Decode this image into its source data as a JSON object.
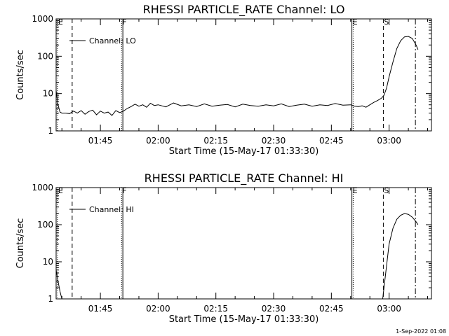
{
  "colors": {
    "background": "#ffffff",
    "foreground": "#000000"
  },
  "timestamp": "1-Sep-2022 01:08",
  "chart_data": [
    {
      "type": "line",
      "title": "RHESSI PARTICLE_RATE Channel: LO",
      "xlabel": "Start Time (15-May-17 01:33:30)",
      "ylabel": "Counts/sec",
      "y_scale": "log",
      "ylim": [
        1,
        1000
      ],
      "y_ticks": [
        "1",
        "10",
        "100",
        "1000"
      ],
      "xlim": [
        "01:33:30",
        "03:11:00"
      ],
      "x_ticks": [
        "01:45",
        "02:00",
        "02:15",
        "02:30",
        "02:45",
        "03:00"
      ],
      "grid": false,
      "legend": {
        "position": "top-left",
        "label": "Channel: LO"
      },
      "markers": [
        {
          "label": "E",
          "time": "01:33:50",
          "style": "dotted"
        },
        {
          "label": "",
          "time": "01:37:40",
          "style": "dashed"
        },
        {
          "label": "F",
          "time": "01:50:30",
          "style": "dotted"
        },
        {
          "label": "",
          "time": "01:50:50",
          "style": "solid"
        },
        {
          "label": "E",
          "time": "02:50:20",
          "style": "solid"
        },
        {
          "label": "",
          "time": "02:50:40",
          "style": "dotted"
        },
        {
          "label": "S",
          "time": "02:58:30",
          "style": "dashed"
        },
        {
          "label": "",
          "time": "03:06:50",
          "style": "dashdot"
        }
      ],
      "series": [
        {
          "x": [
            "01:33:30",
            "01:34:00",
            "01:34:30",
            "01:35:00",
            "01:36:00",
            "01:37:00",
            "01:38:00",
            "01:39:00",
            "01:40:00",
            "01:41:00",
            "01:42:00",
            "01:43:00",
            "01:44:00",
            "01:45:00",
            "01:46:00",
            "01:47:00",
            "01:48:00",
            "01:49:00",
            "01:50:00",
            "01:50:50",
            "01:52:00",
            "01:53:00",
            "01:54:00",
            "01:55:00",
            "01:56:00",
            "01:57:00",
            "01:58:00",
            "01:59:00",
            "02:00:00",
            "02:02:00",
            "02:04:00",
            "02:06:00",
            "02:08:00",
            "02:10:00",
            "02:12:00",
            "02:14:00",
            "02:16:00",
            "02:18:00",
            "02:20:00",
            "02:22:00",
            "02:24:00",
            "02:26:00",
            "02:28:00",
            "02:30:00",
            "02:32:00",
            "02:34:00",
            "02:36:00",
            "02:38:00",
            "02:40:00",
            "02:42:00",
            "02:44:00",
            "02:46:00",
            "02:48:00",
            "02:50:00",
            "02:51:00",
            "02:52:00",
            "02:53:00",
            "02:54:00",
            "02:55:00",
            "02:56:00",
            "02:57:00",
            "02:58:00",
            "02:58:40",
            "02:59:20",
            "03:00:00",
            "03:01:00",
            "03:02:00",
            "03:03:00",
            "03:04:00",
            "03:05:00",
            "03:06:00",
            "03:07:00",
            "03:07:30"
          ],
          "y": [
            12,
            5,
            3.2,
            3,
            3,
            2.9,
            3.4,
            3,
            3.5,
            2.8,
            3.3,
            3.6,
            2.7,
            3.4,
            3,
            3.2,
            2.6,
            3.5,
            3.1,
            3.3,
            4,
            4.5,
            5.2,
            4.6,
            5,
            4.3,
            5.5,
            4.8,
            5,
            4.4,
            5.6,
            4.7,
            5,
            4.5,
            5.3,
            4.6,
            4.9,
            5.1,
            4.4,
            5.2,
            4.8,
            4.6,
            5,
            4.7,
            5.3,
            4.5,
            4.9,
            5.2,
            4.6,
            5,
            4.8,
            5.4,
            4.9,
            5,
            4.6,
            4.5,
            4.7,
            4.3,
            5,
            5.8,
            6.5,
            7.5,
            9,
            14,
            28,
            70,
            160,
            260,
            330,
            340,
            300,
            200,
            150
          ]
        }
      ]
    },
    {
      "type": "line",
      "title": "RHESSI PARTICLE_RATE Channel: HI",
      "xlabel": "Start Time (15-May-17 01:33:30)",
      "ylabel": "Counts/sec",
      "y_scale": "log",
      "ylim": [
        1,
        1000
      ],
      "y_ticks": [
        "1",
        "10",
        "100",
        "1000"
      ],
      "xlim": [
        "01:33:30",
        "03:11:00"
      ],
      "x_ticks": [
        "01:45",
        "02:00",
        "02:15",
        "02:30",
        "02:45",
        "03:00"
      ],
      "grid": false,
      "legend": {
        "position": "top-left",
        "label": "Channel: HI"
      },
      "markers": [
        {
          "label": "E",
          "time": "01:33:50",
          "style": "dotted"
        },
        {
          "label": "",
          "time": "01:37:40",
          "style": "dashed"
        },
        {
          "label": "F",
          "time": "01:50:30",
          "style": "dotted"
        },
        {
          "label": "",
          "time": "01:50:50",
          "style": "solid"
        },
        {
          "label": "E",
          "time": "02:50:20",
          "style": "solid"
        },
        {
          "label": "",
          "time": "02:50:40",
          "style": "dotted"
        },
        {
          "label": "S",
          "time": "02:58:30",
          "style": "dashed"
        },
        {
          "label": "",
          "time": "03:06:50",
          "style": "dashdot"
        }
      ],
      "series": [
        {
          "x": [
            "01:33:30",
            "01:34:00",
            "01:34:30",
            "01:35:00"
          ],
          "y": [
            6,
            3,
            1.6,
            1
          ]
        },
        {
          "x": [
            "02:58:20",
            "02:59:00",
            "03:00:00",
            "03:01:00",
            "03:02:00",
            "03:03:00",
            "03:04:00",
            "03:05:00",
            "03:06:00",
            "03:07:00",
            "03:07:30"
          ],
          "y": [
            1,
            4,
            30,
            80,
            140,
            180,
            200,
            190,
            160,
            120,
            100
          ]
        }
      ]
    }
  ]
}
